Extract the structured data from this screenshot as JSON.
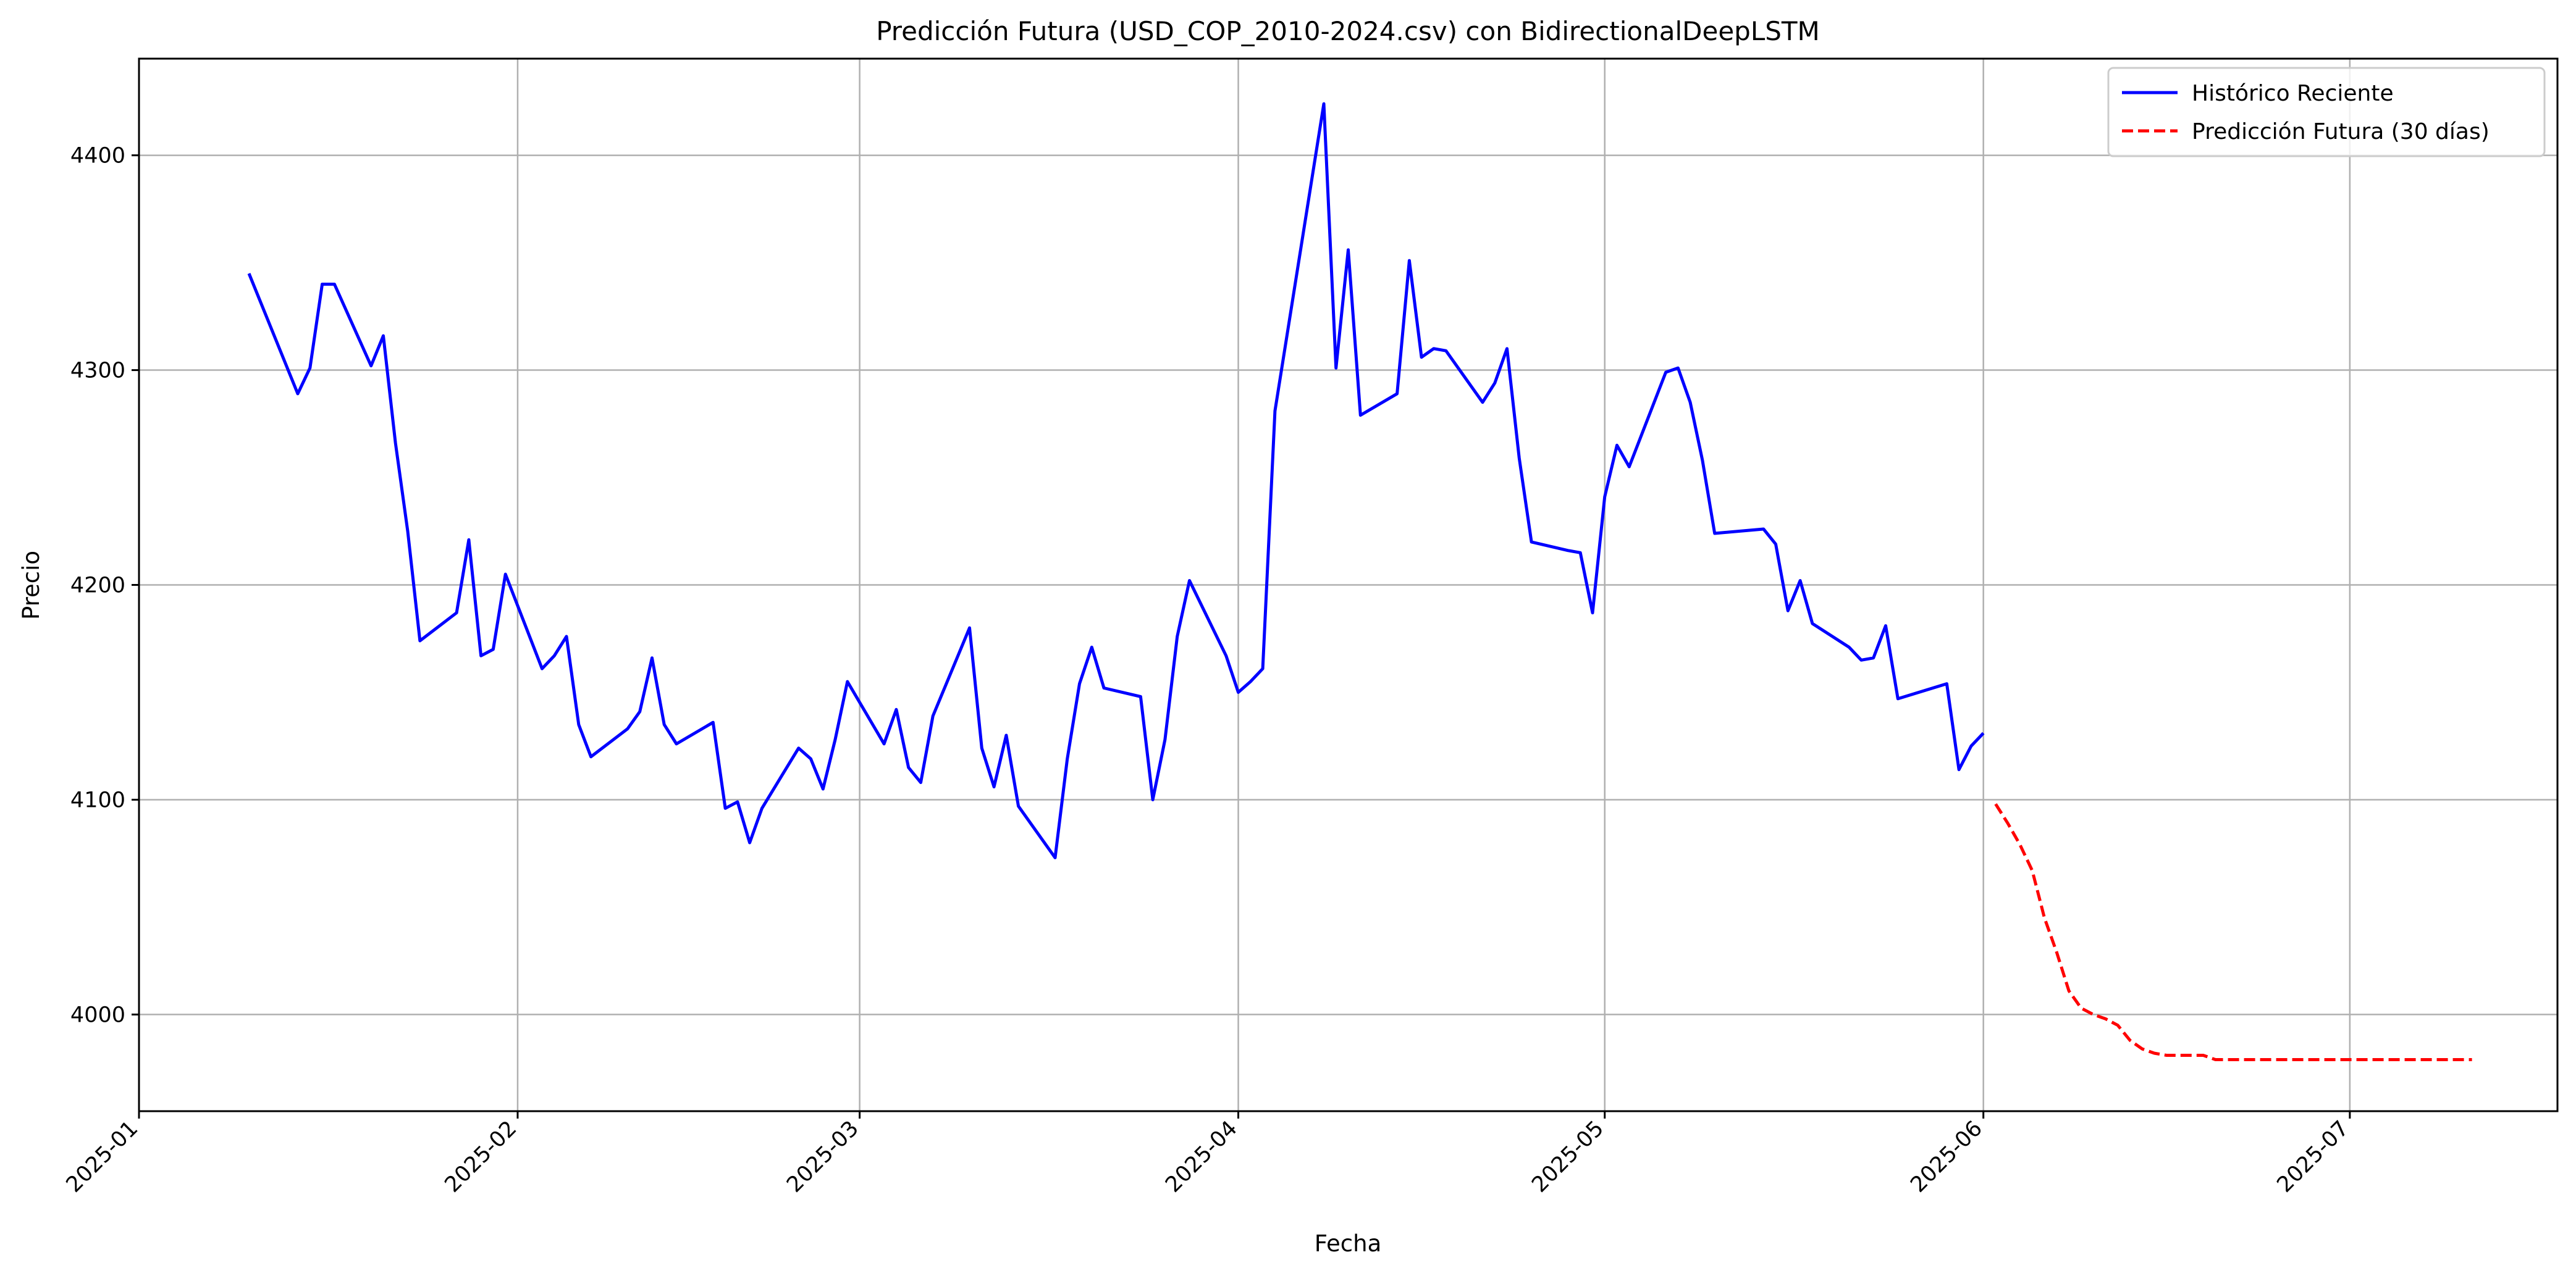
{
  "chart_data": {
    "type": "line",
    "title": "Predicción Futura (USD_COP_2010-2024.csv) con BidirectionalDeepLSTM",
    "xlabel": "Fecha",
    "ylabel": "Precio",
    "xlim": [
      "2025-01-01",
      "2025-07-18"
    ],
    "ylim": [
      3955,
      4445
    ],
    "x_ticks": [
      "2025-01",
      "2025-02",
      "2025-03",
      "2025-04",
      "2025-05",
      "2025-06",
      "2025-07"
    ],
    "y_ticks": [
      4000,
      4100,
      4200,
      4300,
      4400
    ],
    "grid": true,
    "legend_position": "top-right",
    "series": [
      {
        "name": "Histórico Reciente",
        "color": "#0000ff",
        "style": "solid",
        "points": [
          [
            "2025-01-10",
            4345
          ],
          [
            "2025-01-14",
            4289
          ],
          [
            "2025-01-15",
            4301
          ],
          [
            "2025-01-16",
            4340
          ],
          [
            "2025-01-17",
            4340
          ],
          [
            "2025-01-20",
            4302
          ],
          [
            "2025-01-21",
            4316
          ],
          [
            "2025-01-22",
            4266
          ],
          [
            "2025-01-23",
            4225
          ],
          [
            "2025-01-24",
            4174
          ],
          [
            "2025-01-27",
            4187
          ],
          [
            "2025-01-28",
            4221
          ],
          [
            "2025-01-29",
            4167
          ],
          [
            "2025-01-30",
            4170
          ],
          [
            "2025-01-31",
            4205
          ],
          [
            "2025-02-03",
            4161
          ],
          [
            "2025-02-04",
            4167
          ],
          [
            "2025-02-05",
            4176
          ],
          [
            "2025-02-06",
            4135
          ],
          [
            "2025-02-07",
            4120
          ],
          [
            "2025-02-10",
            4133
          ],
          [
            "2025-02-11",
            4141
          ],
          [
            "2025-02-12",
            4166
          ],
          [
            "2025-02-13",
            4135
          ],
          [
            "2025-02-14",
            4126
          ],
          [
            "2025-02-17",
            4136
          ],
          [
            "2025-02-18",
            4096
          ],
          [
            "2025-02-19",
            4099
          ],
          [
            "2025-02-20",
            4080
          ],
          [
            "2025-02-21",
            4096
          ],
          [
            "2025-02-24",
            4124
          ],
          [
            "2025-02-25",
            4119
          ],
          [
            "2025-02-26",
            4105
          ],
          [
            "2025-02-27",
            4128
          ],
          [
            "2025-02-28",
            4155
          ],
          [
            "2025-03-03",
            4126
          ],
          [
            "2025-03-04",
            4142
          ],
          [
            "2025-03-05",
            4115
          ],
          [
            "2025-03-06",
            4108
          ],
          [
            "2025-03-07",
            4139
          ],
          [
            "2025-03-10",
            4180
          ],
          [
            "2025-03-11",
            4124
          ],
          [
            "2025-03-12",
            4106
          ],
          [
            "2025-03-13",
            4130
          ],
          [
            "2025-03-14",
            4097
          ],
          [
            "2025-03-17",
            4073
          ],
          [
            "2025-03-18",
            4119
          ],
          [
            "2025-03-19",
            4154
          ],
          [
            "2025-03-20",
            4171
          ],
          [
            "2025-03-21",
            4152
          ],
          [
            "2025-03-24",
            4148
          ],
          [
            "2025-03-25",
            4100
          ],
          [
            "2025-03-26",
            4128
          ],
          [
            "2025-03-27",
            4176
          ],
          [
            "2025-03-28",
            4202
          ],
          [
            "2025-03-31",
            4167
          ],
          [
            "2025-04-01",
            4150
          ],
          [
            "2025-04-02",
            4155
          ],
          [
            "2025-04-03",
            4161
          ],
          [
            "2025-04-04",
            4281
          ],
          [
            "2025-04-08",
            4424
          ],
          [
            "2025-04-09",
            4301
          ],
          [
            "2025-04-10",
            4356
          ],
          [
            "2025-04-11",
            4279
          ],
          [
            "2025-04-14",
            4289
          ],
          [
            "2025-04-15",
            4351
          ],
          [
            "2025-04-16",
            4306
          ],
          [
            "2025-04-17",
            4310
          ],
          [
            "2025-04-18",
            4309
          ],
          [
            "2025-04-21",
            4285
          ],
          [
            "2025-04-22",
            4294
          ],
          [
            "2025-04-23",
            4310
          ],
          [
            "2025-04-24",
            4259
          ],
          [
            "2025-04-25",
            4220
          ],
          [
            "2025-04-28",
            4216
          ],
          [
            "2025-04-29",
            4215
          ],
          [
            "2025-04-30",
            4187
          ],
          [
            "2025-05-01",
            4241
          ],
          [
            "2025-05-02",
            4265
          ],
          [
            "2025-05-03",
            4255
          ],
          [
            "2025-05-06",
            4299
          ],
          [
            "2025-05-07",
            4301
          ],
          [
            "2025-05-08",
            4285
          ],
          [
            "2025-05-09",
            4258
          ],
          [
            "2025-05-10",
            4224
          ],
          [
            "2025-05-14",
            4226
          ],
          [
            "2025-05-15",
            4219
          ],
          [
            "2025-05-16",
            4188
          ],
          [
            "2025-05-17",
            4202
          ],
          [
            "2025-05-18",
            4182
          ],
          [
            "2025-05-21",
            4171
          ],
          [
            "2025-05-22",
            4165
          ],
          [
            "2025-05-23",
            4166
          ],
          [
            "2025-05-24",
            4181
          ],
          [
            "2025-05-25",
            4147
          ],
          [
            "2025-05-29",
            4154
          ],
          [
            "2025-05-30",
            4114
          ],
          [
            "2025-05-31",
            4125
          ],
          [
            "2025-06-01",
            4131
          ]
        ]
      },
      {
        "name": "Predicción Futura (30 días)",
        "color": "#ff0000",
        "style": "dashed",
        "points": [
          [
            "2025-06-02",
            4098
          ],
          [
            "2025-06-03",
            4089
          ],
          [
            "2025-06-04",
            4079
          ],
          [
            "2025-06-05",
            4067
          ],
          [
            "2025-06-06",
            4045
          ],
          [
            "2025-06-07",
            4029
          ],
          [
            "2025-06-08",
            4011
          ],
          [
            "2025-06-09",
            4003
          ],
          [
            "2025-06-10",
            4000
          ],
          [
            "2025-06-11",
            3998
          ],
          [
            "2025-06-12",
            3995
          ],
          [
            "2025-06-13",
            3988
          ],
          [
            "2025-06-14",
            3984
          ],
          [
            "2025-06-15",
            3982
          ],
          [
            "2025-06-16",
            3981
          ],
          [
            "2025-06-17",
            3981
          ],
          [
            "2025-06-18",
            3981
          ],
          [
            "2025-06-19",
            3981
          ],
          [
            "2025-06-20",
            3979
          ],
          [
            "2025-06-21",
            3979
          ],
          [
            "2025-06-22",
            3979
          ],
          [
            "2025-06-23",
            3979
          ],
          [
            "2025-06-24",
            3979
          ],
          [
            "2025-06-25",
            3979
          ],
          [
            "2025-06-26",
            3979
          ],
          [
            "2025-06-27",
            3979
          ],
          [
            "2025-06-28",
            3979
          ],
          [
            "2025-06-29",
            3979
          ],
          [
            "2025-06-30",
            3979
          ],
          [
            "2025-07-01",
            3979
          ],
          [
            "2025-07-02",
            3979
          ],
          [
            "2025-07-03",
            3979
          ],
          [
            "2025-07-04",
            3979
          ],
          [
            "2025-07-05",
            3979
          ],
          [
            "2025-07-06",
            3979
          ],
          [
            "2025-07-07",
            3979
          ],
          [
            "2025-07-08",
            3979
          ],
          [
            "2025-07-09",
            3979
          ],
          [
            "2025-07-10",
            3979
          ],
          [
            "2025-07-11",
            3979
          ]
        ]
      }
    ]
  }
}
